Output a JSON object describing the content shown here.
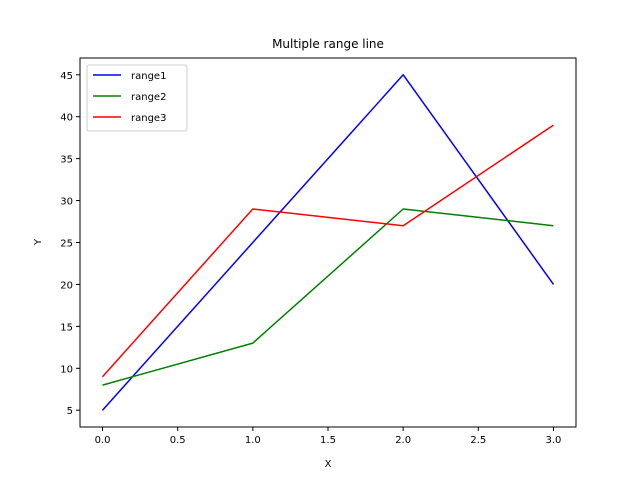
{
  "chart_data": {
    "type": "line",
    "title": "Multiple range line",
    "xlabel": "X",
    "ylabel": "Y",
    "x": [
      0,
      1,
      2,
      3
    ],
    "xlim": [
      -0.15,
      3.15
    ],
    "ylim": [
      3,
      47
    ],
    "xticks": [
      0,
      0.5,
      1,
      1.5,
      2,
      2.5,
      3
    ],
    "xtick_labels": [
      "0.0",
      "0.5",
      "1.0",
      "1.5",
      "2.0",
      "2.5",
      "3.0"
    ],
    "yticks": [
      5,
      10,
      15,
      20,
      25,
      30,
      35,
      40,
      45
    ],
    "ytick_labels": [
      "5",
      "10",
      "15",
      "20",
      "25",
      "30",
      "35",
      "40",
      "45"
    ],
    "grid": false,
    "legend_position": "top-left",
    "series": [
      {
        "name": "range1",
        "color": "#0000ff",
        "values": [
          5,
          25,
          45,
          20
        ]
      },
      {
        "name": "range2",
        "color": "#008000",
        "values": [
          8,
          13,
          29,
          27
        ]
      },
      {
        "name": "range3",
        "color": "#ff0000",
        "values": [
          9,
          29,
          27,
          39
        ]
      }
    ]
  }
}
